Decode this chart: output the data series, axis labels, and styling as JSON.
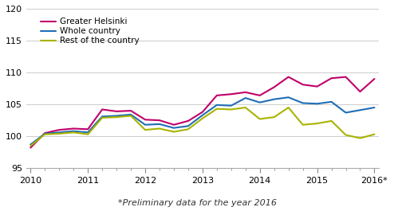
{
  "title": "",
  "footnote": "*Preliminary data for the year 2016",
  "series": {
    "Greater Helsinki": {
      "color": "#c0006a",
      "linewidth": 1.5,
      "values": [
        98.2,
        100.5,
        101.0,
        101.2,
        101.1,
        104.2,
        103.9,
        104.0,
        102.6,
        102.5,
        101.8,
        102.4,
        103.8,
        106.4,
        106.6,
        106.9,
        106.4,
        107.7,
        109.3,
        108.1,
        107.8,
        109.1,
        109.3,
        107.0,
        109.0
      ]
    },
    "Whole country": {
      "color": "#1f6eb5",
      "linewidth": 1.5,
      "values": [
        98.7,
        100.4,
        100.6,
        100.8,
        100.6,
        103.1,
        103.2,
        103.4,
        101.8,
        101.9,
        101.3,
        101.6,
        103.3,
        104.9,
        104.8,
        106.0,
        105.3,
        105.8,
        106.1,
        105.2,
        105.1,
        105.4,
        103.7,
        104.1,
        104.5
      ]
    },
    "Rest of the country": {
      "color": "#a8b400",
      "linewidth": 1.5,
      "values": [
        98.5,
        100.3,
        100.4,
        100.6,
        100.3,
        102.9,
        103.0,
        103.2,
        101.0,
        101.2,
        100.7,
        101.1,
        102.8,
        104.3,
        104.2,
        104.5,
        102.7,
        103.0,
        104.5,
        101.8,
        102.0,
        102.4,
        100.2,
        99.7,
        100.3
      ]
    }
  },
  "n_points": 25,
  "xtick_labels": [
    "2010",
    "2011",
    "2012",
    "2013",
    "2014",
    "2015",
    "2016*"
  ],
  "xtick_positions": [
    0,
    4,
    8,
    12,
    16,
    20,
    24
  ],
  "minor_xtick_positions": [
    1,
    2,
    3,
    5,
    6,
    7,
    9,
    10,
    11,
    13,
    14,
    15,
    17,
    18,
    19,
    21,
    22,
    23
  ],
  "ylim": [
    95,
    120
  ],
  "yticks": [
    95,
    100,
    105,
    110,
    115,
    120
  ],
  "grid_color": "#cccccc",
  "background_color": "#ffffff",
  "legend_fontsize": 7.5,
  "tick_fontsize": 8,
  "footnote_fontsize": 8
}
